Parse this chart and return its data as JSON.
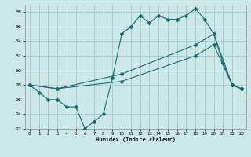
{
  "xlabel": "Humidex (Indice chaleur)",
  "bg_color": "#cce8e8",
  "grid_color": "#aacccc",
  "line_color": "#1a6b6b",
  "xlim": [
    -0.5,
    23.5
  ],
  "ylim": [
    22,
    39
  ],
  "yticks": [
    22,
    24,
    26,
    28,
    30,
    32,
    34,
    36,
    38
  ],
  "xticks": [
    0,
    1,
    2,
    3,
    4,
    5,
    6,
    7,
    8,
    9,
    10,
    11,
    12,
    13,
    14,
    15,
    16,
    17,
    18,
    19,
    20,
    21,
    22,
    23
  ],
  "line1_x": [
    0,
    1,
    2,
    3,
    4,
    5,
    6,
    7,
    8,
    9,
    10,
    11,
    12,
    13,
    14,
    15,
    16,
    17,
    18,
    19,
    20,
    21,
    22,
    23
  ],
  "line1_y": [
    28.0,
    27.0,
    26.0,
    26.0,
    25.0,
    25.0,
    22.0,
    23.0,
    24.0,
    29.0,
    35.0,
    36.0,
    37.5,
    36.5,
    37.5,
    37.0,
    37.0,
    37.5,
    38.5,
    37.0,
    35.0,
    31.0,
    28.0,
    27.5
  ],
  "line2_x": [
    0,
    3,
    10,
    18,
    20,
    22,
    23
  ],
  "line2_y": [
    28.0,
    27.5,
    29.5,
    33.5,
    35.0,
    28.0,
    27.5
  ],
  "line3_x": [
    0,
    3,
    10,
    18,
    20,
    22,
    23
  ],
  "line3_y": [
    28.0,
    27.5,
    28.5,
    32.0,
    33.5,
    28.0,
    27.5
  ]
}
